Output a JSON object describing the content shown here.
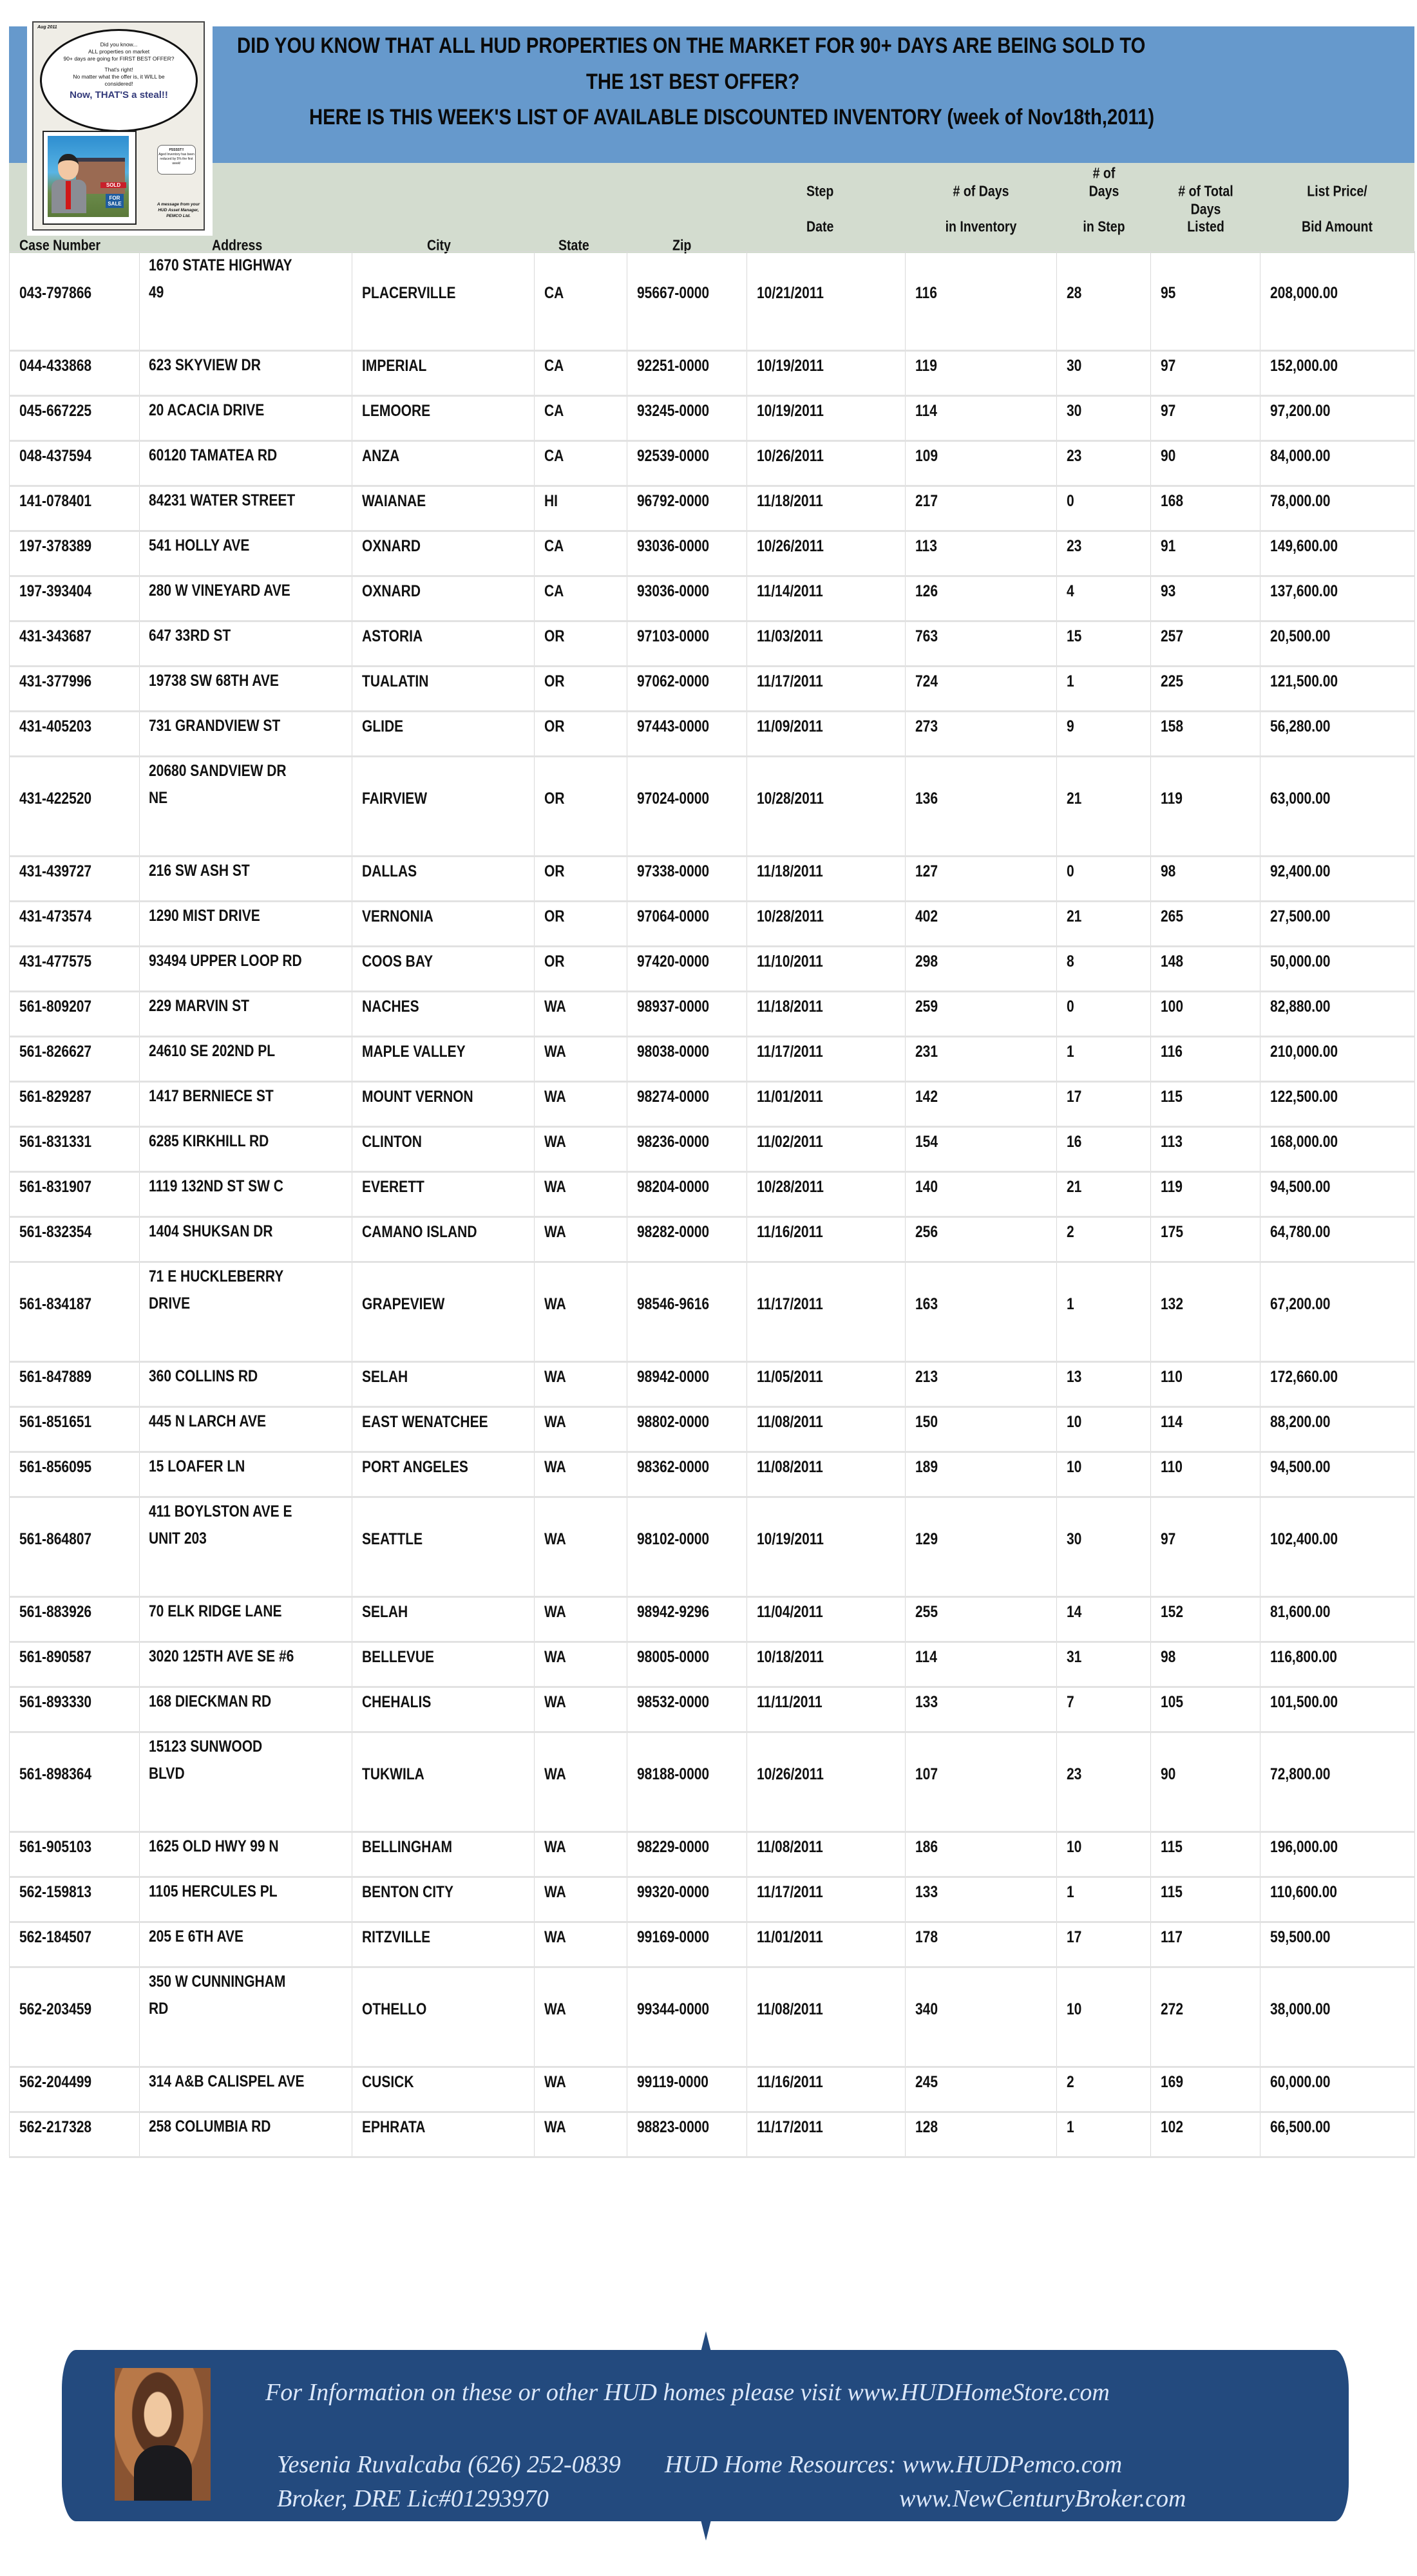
{
  "header": {
    "title_line1": "DID YOU KNOW THAT ALL HUD PROPERTIES ON THE MARKET FOR 90+ DAYS ARE BEING SOLD TO",
    "title_line2": "THE 1ST BEST OFFER?",
    "title_line3": "HERE IS THIS WEEK'S LIST OF AVAILABLE DISCOUNTED INVENTORY (week of Nov18th,2011)",
    "band_color": "#6699cc",
    "subheader_color": "#d3dccf"
  },
  "logo": {
    "date": "Aug 2011",
    "bubble_line1": "Did you know...",
    "bubble_line2": "ALL properties on market",
    "bubble_line3": "90+ days are going for FIRST BEST OFFER?",
    "bubble_line4": "That's right!",
    "bubble_line5": "No matter what the offer is, it WILL be considered!",
    "bubble_tagline": "Now, THAT'S a steal!!",
    "psst_title": "PSSSST!!",
    "psst_text": "Aged Inventory has been reduced by 5% the first week!",
    "sold_sign": "SOLD",
    "for_sale_sign": "FOR SALE",
    "message": "A message from your HUD Asset Manager, PEMCO Ltd."
  },
  "columns": {
    "case_number": "Case Number",
    "address": "Address",
    "city": "City",
    "state": "State",
    "zip": "Zip",
    "step_date_1": "Step",
    "step_date_2": "Date",
    "days_inventory_1": "# of Days",
    "days_inventory_2": "in Inventory",
    "days_step_1": "# of",
    "days_step_2": "Days",
    "days_step_3": "in Step",
    "total_days_1": "# of Total",
    "total_days_2": "Days",
    "total_days_3": "Listed",
    "price_1": "List Price/",
    "price_2": "Bid Amount"
  },
  "rows": [
    {
      "case": "043-797866",
      "address": "1670 STATE HIGHWAY\n49",
      "city": "PLACERVILLE",
      "state": "CA",
      "zip": "95667-0000",
      "date": "10/21/2011",
      "days_inv": "116",
      "days_step": "28",
      "total_days": "95",
      "price": "208,000.00"
    },
    {
      "case": "044-433868",
      "address": "623 SKYVIEW DR",
      "city": "IMPERIAL",
      "state": "CA",
      "zip": "92251-0000",
      "date": "10/19/2011",
      "days_inv": "119",
      "days_step": "30",
      "total_days": "97",
      "price": "152,000.00"
    },
    {
      "case": "045-667225",
      "address": "20 ACACIA DRIVE",
      "city": "LEMOORE",
      "state": "CA",
      "zip": "93245-0000",
      "date": "10/19/2011",
      "days_inv": "114",
      "days_step": "30",
      "total_days": "97",
      "price": "97,200.00"
    },
    {
      "case": "048-437594",
      "address": "60120 TAMATEA RD",
      "city": "ANZA",
      "state": "CA",
      "zip": "92539-0000",
      "date": "10/26/2011",
      "days_inv": "109",
      "days_step": "23",
      "total_days": "90",
      "price": "84,000.00"
    },
    {
      "case": "141-078401",
      "address": "84231 WATER STREET",
      "city": "WAIANAE",
      "state": "HI",
      "zip": "96792-0000",
      "date": "11/18/2011",
      "days_inv": "217",
      "days_step": "0",
      "total_days": "168",
      "price": "78,000.00"
    },
    {
      "case": "197-378389",
      "address": "541 HOLLY AVE",
      "city": "OXNARD",
      "state": "CA",
      "zip": "93036-0000",
      "date": "10/26/2011",
      "days_inv": "113",
      "days_step": "23",
      "total_days": "91",
      "price": "149,600.00"
    },
    {
      "case": "197-393404",
      "address": "280 W VINEYARD AVE",
      "city": "OXNARD",
      "state": "CA",
      "zip": "93036-0000",
      "date": "11/14/2011",
      "days_inv": "126",
      "days_step": "4",
      "total_days": "93",
      "price": "137,600.00"
    },
    {
      "case": "431-343687",
      "address": "647 33RD ST",
      "city": "ASTORIA",
      "state": "OR",
      "zip": "97103-0000",
      "date": "11/03/2011",
      "days_inv": "763",
      "days_step": "15",
      "total_days": "257",
      "price": "20,500.00"
    },
    {
      "case": "431-377996",
      "address": "19738 SW 68TH AVE",
      "city": "TUALATIN",
      "state": "OR",
      "zip": "97062-0000",
      "date": "11/17/2011",
      "days_inv": "724",
      "days_step": "1",
      "total_days": "225",
      "price": "121,500.00"
    },
    {
      "case": "431-405203",
      "address": "731 GRANDVIEW ST",
      "city": "GLIDE",
      "state": "OR",
      "zip": "97443-0000",
      "date": "11/09/2011",
      "days_inv": "273",
      "days_step": "9",
      "total_days": "158",
      "price": "56,280.00"
    },
    {
      "case": "431-422520",
      "address": "20680 SANDVIEW DR\nNE",
      "city": "FAIRVIEW",
      "state": "OR",
      "zip": "97024-0000",
      "date": "10/28/2011",
      "days_inv": "136",
      "days_step": "21",
      "total_days": "119",
      "price": "63,000.00"
    },
    {
      "case": "431-439727",
      "address": "216 SW ASH ST",
      "city": "DALLAS",
      "state": "OR",
      "zip": "97338-0000",
      "date": "11/18/2011",
      "days_inv": "127",
      "days_step": "0",
      "total_days": "98",
      "price": "92,400.00"
    },
    {
      "case": "431-473574",
      "address": "1290 MIST DRIVE",
      "city": "VERNONIA",
      "state": "OR",
      "zip": "97064-0000",
      "date": "10/28/2011",
      "days_inv": "402",
      "days_step": "21",
      "total_days": "265",
      "price": "27,500.00"
    },
    {
      "case": "431-477575",
      "address": "93494 UPPER LOOP RD",
      "city": "COOS BAY",
      "state": "OR",
      "zip": "97420-0000",
      "date": "11/10/2011",
      "days_inv": "298",
      "days_step": "8",
      "total_days": "148",
      "price": "50,000.00"
    },
    {
      "case": "561-809207",
      "address": "229 MARVIN ST",
      "city": "NACHES",
      "state": "WA",
      "zip": "98937-0000",
      "date": "11/18/2011",
      "days_inv": "259",
      "days_step": "0",
      "total_days": "100",
      "price": "82,880.00"
    },
    {
      "case": "561-826627",
      "address": "24610 SE 202ND PL",
      "city": "MAPLE VALLEY",
      "state": "WA",
      "zip": "98038-0000",
      "date": "11/17/2011",
      "days_inv": "231",
      "days_step": "1",
      "total_days": "116",
      "price": "210,000.00"
    },
    {
      "case": "561-829287",
      "address": "1417 BERNIECE ST",
      "city": "MOUNT VERNON",
      "state": "WA",
      "zip": "98274-0000",
      "date": "11/01/2011",
      "days_inv": "142",
      "days_step": "17",
      "total_days": "115",
      "price": "122,500.00"
    },
    {
      "case": "561-831331",
      "address": "6285 KIRKHILL RD",
      "city": "CLINTON",
      "state": "WA",
      "zip": "98236-0000",
      "date": "11/02/2011",
      "days_inv": "154",
      "days_step": "16",
      "total_days": "113",
      "price": "168,000.00"
    },
    {
      "case": "561-831907",
      "address": "1119 132ND ST SW C",
      "city": "EVERETT",
      "state": "WA",
      "zip": "98204-0000",
      "date": "10/28/2011",
      "days_inv": "140",
      "days_step": "21",
      "total_days": "119",
      "price": "94,500.00"
    },
    {
      "case": "561-832354",
      "address": "1404 SHUKSAN DR",
      "city": "CAMANO ISLAND",
      "state": "WA",
      "zip": "98282-0000",
      "date": "11/16/2011",
      "days_inv": "256",
      "days_step": "2",
      "total_days": "175",
      "price": "64,780.00"
    },
    {
      "case": "561-834187",
      "address": "71 E HUCKLEBERRY\nDRIVE",
      "city": "GRAPEVIEW",
      "state": "WA",
      "zip": "98546-9616",
      "date": "11/17/2011",
      "days_inv": "163",
      "days_step": "1",
      "total_days": "132",
      "price": "67,200.00"
    },
    {
      "case": "561-847889",
      "address": "360 COLLINS RD",
      "city": "SELAH",
      "state": "WA",
      "zip": "98942-0000",
      "date": "11/05/2011",
      "days_inv": "213",
      "days_step": "13",
      "total_days": "110",
      "price": "172,660.00"
    },
    {
      "case": "561-851651",
      "address": "445 N LARCH AVE",
      "city": "EAST WENATCHEE",
      "state": "WA",
      "zip": "98802-0000",
      "date": "11/08/2011",
      "days_inv": "150",
      "days_step": "10",
      "total_days": "114",
      "price": "88,200.00"
    },
    {
      "case": "561-856095",
      "address": "15 LOAFER LN",
      "city": "PORT ANGELES",
      "state": "WA",
      "zip": "98362-0000",
      "date": "11/08/2011",
      "days_inv": "189",
      "days_step": "10",
      "total_days": "110",
      "price": "94,500.00"
    },
    {
      "case": "561-864807",
      "address": "411 BOYLSTON AVE E\nUNIT 203",
      "city": "SEATTLE",
      "state": "WA",
      "zip": "98102-0000",
      "date": "10/19/2011",
      "days_inv": "129",
      "days_step": "30",
      "total_days": "97",
      "price": "102,400.00"
    },
    {
      "case": "561-883926",
      "address": "70 ELK RIDGE LANE",
      "city": "SELAH",
      "state": "WA",
      "zip": "98942-9296",
      "date": "11/04/2011",
      "days_inv": "255",
      "days_step": "14",
      "total_days": "152",
      "price": "81,600.00"
    },
    {
      "case": "561-890587",
      "address": "3020 125TH AVE SE #6",
      "city": "BELLEVUE",
      "state": "WA",
      "zip": "98005-0000",
      "date": "10/18/2011",
      "days_inv": "114",
      "days_step": "31",
      "total_days": "98",
      "price": "116,800.00"
    },
    {
      "case": "561-893330",
      "address": "168 DIECKMAN RD",
      "city": "CHEHALIS",
      "state": "WA",
      "zip": "98532-0000",
      "date": "11/11/2011",
      "days_inv": "133",
      "days_step": "7",
      "total_days": "105",
      "price": "101,500.00"
    },
    {
      "case": "561-898364",
      "address": "15123 SUNWOOD\nBLVD",
      "city": "TUKWILA",
      "state": "WA",
      "zip": "98188-0000",
      "date": "10/26/2011",
      "days_inv": "107",
      "days_step": "23",
      "total_days": "90",
      "price": "72,800.00"
    },
    {
      "case": "561-905103",
      "address": "1625 OLD HWY 99 N",
      "city": "BELLINGHAM",
      "state": "WA",
      "zip": "98229-0000",
      "date": "11/08/2011",
      "days_inv": "186",
      "days_step": "10",
      "total_days": "115",
      "price": "196,000.00"
    },
    {
      "case": "562-159813",
      "address": "1105 HERCULES PL",
      "city": "BENTON CITY",
      "state": "WA",
      "zip": "99320-0000",
      "date": "11/17/2011",
      "days_inv": "133",
      "days_step": "1",
      "total_days": "115",
      "price": "110,600.00"
    },
    {
      "case": "562-184507",
      "address": "205 E 6TH AVE",
      "city": "RITZVILLE",
      "state": "WA",
      "zip": "99169-0000",
      "date": "11/01/2011",
      "days_inv": "178",
      "days_step": "17",
      "total_days": "117",
      "price": "59,500.00"
    },
    {
      "case": "562-203459",
      "address": "350 W CUNNINGHAM\nRD",
      "city": "OTHELLO",
      "state": "WA",
      "zip": "99344-0000",
      "date": "11/08/2011",
      "days_inv": "340",
      "days_step": "10",
      "total_days": "272",
      "price": "38,000.00"
    },
    {
      "case": "562-204499",
      "address": "314 A&B CALISPEL AVE",
      "city": "CUSICK",
      "state": "WA",
      "zip": "99119-0000",
      "date": "11/16/2011",
      "days_inv": "245",
      "days_step": "2",
      "total_days": "169",
      "price": "60,000.00"
    },
    {
      "case": "562-217328",
      "address": "258 COLUMBIA RD",
      "city": "EPHRATA",
      "state": "WA",
      "zip": "98823-0000",
      "date": "11/17/2011",
      "days_inv": "128",
      "days_step": "1",
      "total_days": "102",
      "price": "66,500.00"
    }
  ],
  "footer": {
    "info": "For Information on these or other HUD homes please visit www.HUDHomeStore.com",
    "agent": "Yesenia Ruvalcaba (626) 252-0839",
    "resources": "HUD Home Resources: www.HUDPemco.com",
    "license": "Broker, DRE Lic#01293970",
    "website": "www.NewCenturyBroker.com",
    "background_color": "#234a7e"
  }
}
